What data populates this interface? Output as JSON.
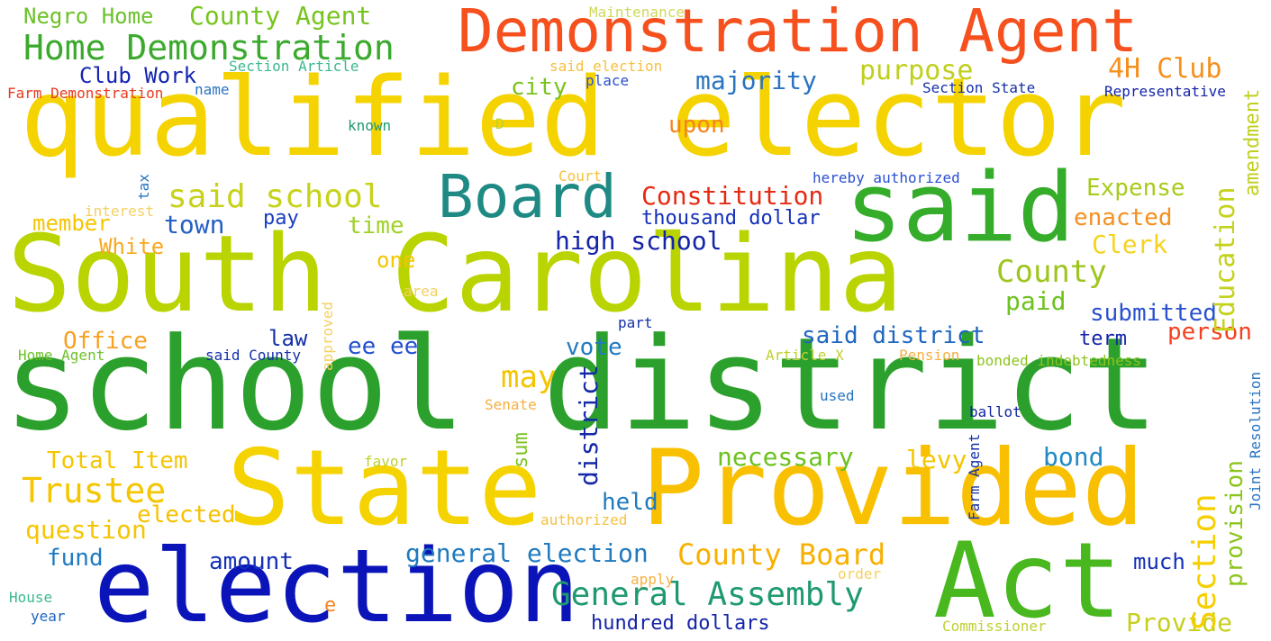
{
  "words": {
    "school_district": {
      "text": "school district",
      "color": "#2ca02c"
    },
    "qualified_elector": {
      "text": "qualified elector",
      "color": "#f5d300"
    },
    "south_carolina": {
      "text": "South Carolina",
      "color": "#b9d400"
    },
    "state": {
      "text": "State",
      "color": "#f5d300"
    },
    "provided": {
      "text": "Provided",
      "color": "#f8c000"
    },
    "election": {
      "text": "election",
      "color": "#0a14b8"
    },
    "act": {
      "text": "Act",
      "color": "#49b81e"
    },
    "said": {
      "text": "said",
      "color": "#35ad2b"
    },
    "demonstration_agent": {
      "text": "Demonstration Agent",
      "color": "#f5501e"
    },
    "board": {
      "text": "Board",
      "color": "#1f8a84"
    },
    "home_demonstration": {
      "text": "Home Demonstration",
      "color": "#3aa92c"
    },
    "general_assembly": {
      "text": "General Assembly",
      "color": "#1f9a6e"
    },
    "county_agent": {
      "text": "County Agent",
      "color": "#76c51e"
    },
    "negro_home": {
      "text": "Negro Home",
      "color": "#6cc22a"
    },
    "said_school": {
      "text": "said school",
      "color": "#c7d21b"
    },
    "constitution": {
      "text": "Constitution",
      "color": "#e62b14"
    },
    "trustee": {
      "text": "Trustee",
      "color": "#f5c500"
    },
    "county_board": {
      "text": "County Board",
      "color": "#f8b000"
    },
    "section": {
      "text": "Section",
      "color": "#f5cf00"
    },
    "education": {
      "text": "Education",
      "color": "#c4d21a"
    },
    "county": {
      "text": "County",
      "color": "#9ec51e"
    },
    "club_4h": {
      "text": "4H Club",
      "color": "#f5901e"
    },
    "purpose": {
      "text": "purpose",
      "color": "#c0cf1d"
    },
    "majority": {
      "text": "majority",
      "color": "#2a74c0"
    },
    "club_work": {
      "text": "Club Work",
      "color": "#1424b0"
    },
    "city": {
      "text": "city",
      "color": "#7cc11e"
    },
    "upon": {
      "text": "upon",
      "color": "#f58520"
    },
    "town": {
      "text": "town",
      "color": "#2560c4"
    },
    "member": {
      "text": "member",
      "color": "#f5c500"
    },
    "white": {
      "text": "White",
      "color": "#f8a820"
    },
    "pay": {
      "text": "pay",
      "color": "#1a3ec0"
    },
    "time": {
      "text": "time",
      "color": "#9ed22a"
    },
    "thousand_dollar": {
      "text": "thousand dollar",
      "color": "#1430b8"
    },
    "high_school": {
      "text": "high school",
      "color": "#1424a8"
    },
    "expense": {
      "text": "Expense",
      "color": "#a6cc1a"
    },
    "enacted": {
      "text": "enacted",
      "color": "#f5901e"
    },
    "clerk": {
      "text": "Clerk",
      "color": "#f5d31e"
    },
    "amendment": {
      "text": "amendment",
      "color": "#c0cf1d"
    },
    "one": {
      "text": "one",
      "color": "#f5c500"
    },
    "paid": {
      "text": "paid",
      "color": "#6cc21e"
    },
    "submitted": {
      "text": "submitted",
      "color": "#2a50d0"
    },
    "person": {
      "text": "person",
      "color": "#f54020"
    },
    "term": {
      "text": "term",
      "color": "#1424a8"
    },
    "said_district": {
      "text": "said district",
      "color": "#1f65c0"
    },
    "office": {
      "text": "Office",
      "color": "#f8a020"
    },
    "law": {
      "text": "law",
      "color": "#1430a8"
    },
    "ee_ee": {
      "text": "ee ee",
      "color": "#2450d0"
    },
    "vote": {
      "text": "vote",
      "color": "#1f7ac0"
    },
    "may": {
      "text": "may",
      "color": "#f5c500"
    },
    "district_small": {
      "text": "district",
      "color": "#1428a8"
    },
    "sum": {
      "text": "sum",
      "color": "#7cc21e"
    },
    "total_item": {
      "text": "Total Item",
      "color": "#f5c500"
    },
    "elected": {
      "text": "elected",
      "color": "#f8c000"
    },
    "question": {
      "text": "question",
      "color": "#f5c500"
    },
    "fund": {
      "text": "fund",
      "color": "#1f7ac0"
    },
    "amount": {
      "text": "amount",
      "color": "#1430b8"
    },
    "general_election": {
      "text": "general election",
      "color": "#1f7ac0"
    },
    "held": {
      "text": "held",
      "color": "#1f7ac0"
    },
    "necessary": {
      "text": "necessary",
      "color": "#6cc21e"
    },
    "levy": {
      "text": "levy",
      "color": "#f5c500"
    },
    "bond": {
      "text": "bond",
      "color": "#1f8ac4"
    },
    "much": {
      "text": "much",
      "color": "#1430b8"
    },
    "provision": {
      "text": "provision",
      "color": "#8dc41e"
    },
    "provide": {
      "text": "Provide",
      "color": "#c7cf1e"
    },
    "hundred_dollars": {
      "text": "hundred dollars",
      "color": "#1424a8"
    },
    "maintenance": {
      "text": "Maintenance",
      "color": "#d0d85a"
    },
    "section_article": {
      "text": "Section Article",
      "color": "#3bb98f"
    },
    "said_election": {
      "text": "said election",
      "color": "#f5c040"
    },
    "place": {
      "text": "place",
      "color": "#2a50d0"
    },
    "section_state": {
      "text": "Section State",
      "color": "#1430a8"
    },
    "representative": {
      "text": "Representative",
      "color": "#1424a8"
    },
    "farm_demonstration": {
      "text": "Farm Demonstration",
      "color": "#e83a1e"
    },
    "name": {
      "text": "name",
      "color": "#2a74c0"
    },
    "known": {
      "text": "known",
      "color": "#1f9a6e"
    },
    "d": {
      "text": "D",
      "color": "#c0d030"
    },
    "court": {
      "text": "Court",
      "color": "#f5c040"
    },
    "hereby_authorized": {
      "text": "hereby authorized",
      "color": "#2a50d0"
    },
    "tax": {
      "text": "tax",
      "color": "#2a74c0"
    },
    "interest": {
      "text": "interest",
      "color": "#f5d060"
    },
    "area": {
      "text": "area",
      "color": "#f5d060"
    },
    "approved": {
      "text": "approved",
      "color": "#f5d060"
    },
    "part": {
      "text": "part",
      "color": "#1430a8"
    },
    "home_agent": {
      "text": "Home Agent",
      "color": "#6cc22a"
    },
    "said_county": {
      "text": "said County",
      "color": "#1430a8"
    },
    "article_x": {
      "text": "Article X",
      "color": "#c0d030"
    },
    "pension": {
      "text": "Pension",
      "color": "#f5b040"
    },
    "bonded_indebtedness": {
      "text": "bonded indebtedness",
      "color": "#8dc41e"
    },
    "used": {
      "text": "used",
      "color": "#2a74c0"
    },
    "senate": {
      "text": "Senate",
      "color": "#f5b040"
    },
    "ballot": {
      "text": "ballot",
      "color": "#1424a8"
    },
    "farm_agent": {
      "text": "Farm Agent",
      "color": "#1430a8"
    },
    "joint_resolution": {
      "text": "Joint Resolution",
      "color": "#2a74c0"
    },
    "favor": {
      "text": "favor",
      "color": "#c0d030"
    },
    "authorized": {
      "text": "authorized",
      "color": "#f5c040"
    },
    "apply": {
      "text": "apply",
      "color": "#f5b040"
    },
    "order": {
      "text": "order",
      "color": "#f5d060"
    },
    "e": {
      "text": "e",
      "color": "#f58520"
    },
    "house": {
      "text": "House",
      "color": "#3bb98f"
    },
    "year": {
      "text": "year",
      "color": "#1f65c0"
    },
    "commissioner": {
      "text": "Commissioner",
      "color": "#c0d030"
    }
  }
}
